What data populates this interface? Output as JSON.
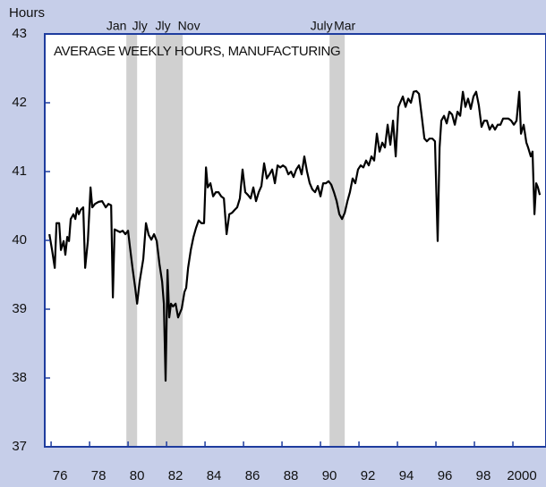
{
  "chart_data": {
    "type": "line",
    "title": "AVERAGE WEEKLY HOURS, MANUFACTURING",
    "y_label": "Hours",
    "xlim": [
      1975.67,
      2001.72
    ],
    "ylim": [
      37,
      43
    ],
    "yticks": [
      37,
      38,
      39,
      40,
      41,
      42,
      43
    ],
    "xticks": [
      {
        "value": 1976,
        "label": "76"
      },
      {
        "value": 1978,
        "label": "78"
      },
      {
        "value": 1980,
        "label": "80"
      },
      {
        "value": 1982,
        "label": "82"
      },
      {
        "value": 1984,
        "label": "84"
      },
      {
        "value": 1986,
        "label": "86"
      },
      {
        "value": 1988,
        "label": "88"
      },
      {
        "value": 1990,
        "label": "90"
      },
      {
        "value": 1992,
        "label": "92"
      },
      {
        "value": 1994,
        "label": "94"
      },
      {
        "value": 1996,
        "label": "96"
      },
      {
        "value": 1998,
        "label": "98"
      },
      {
        "value": 2000,
        "label": "2000"
      }
    ],
    "recessions": [
      {
        "start": 1979.91,
        "end": 1980.47,
        "start_label": "Jan",
        "end_label": "Jly"
      },
      {
        "start": 1981.44,
        "end": 1982.84,
        "start_label": "Jly",
        "end_label": "Nov"
      },
      {
        "start": 1990.47,
        "end": 1991.26,
        "start_label": "July",
        "end_label": "Mar"
      }
    ],
    "recession_color": "#d0d0d0",
    "series": [
      {
        "name": "Average weekly hours",
        "color": "#000000",
        "x": [
          1975.91,
          1976.05,
          1976.19,
          1976.28,
          1976.42,
          1976.51,
          1976.65,
          1976.74,
          1976.84,
          1976.93,
          1977.02,
          1977.16,
          1977.26,
          1977.35,
          1977.44,
          1977.53,
          1977.67,
          1977.77,
          1977.91,
          1978.05,
          1978.14,
          1978.28,
          1978.47,
          1978.65,
          1978.84,
          1978.98,
          1979.12,
          1979.21,
          1979.3,
          1979.44,
          1979.58,
          1979.72,
          1979.86,
          1980.0,
          1980.09,
          1980.23,
          1980.37,
          1980.47,
          1980.6,
          1980.79,
          1980.93,
          1981.07,
          1981.21,
          1981.35,
          1981.49,
          1981.63,
          1981.77,
          1981.86,
          1981.95,
          1982.05,
          1982.14,
          1982.23,
          1982.33,
          1982.47,
          1982.6,
          1982.79,
          1982.93,
          1983.02,
          1983.12,
          1983.26,
          1983.4,
          1983.53,
          1983.67,
          1983.81,
          1983.95,
          1984.05,
          1984.14,
          1984.28,
          1984.42,
          1984.56,
          1984.7,
          1984.84,
          1984.98,
          1985.12,
          1985.26,
          1985.4,
          1985.53,
          1985.67,
          1985.81,
          1985.95,
          1986.09,
          1986.23,
          1986.37,
          1986.51,
          1986.65,
          1986.79,
          1986.93,
          1987.07,
          1987.21,
          1987.35,
          1987.49,
          1987.63,
          1987.77,
          1987.91,
          1988.05,
          1988.19,
          1988.33,
          1988.47,
          1988.6,
          1988.74,
          1988.88,
          1989.02,
          1989.16,
          1989.3,
          1989.44,
          1989.58,
          1989.72,
          1989.86,
          1990.0,
          1990.14,
          1990.28,
          1990.42,
          1990.56,
          1990.7,
          1990.84,
          1990.98,
          1991.12,
          1991.26,
          1991.4,
          1991.53,
          1991.67,
          1991.81,
          1991.95,
          1992.09,
          1992.23,
          1992.37,
          1992.51,
          1992.65,
          1992.79,
          1992.93,
          1993.07,
          1993.21,
          1993.35,
          1993.49,
          1993.63,
          1993.77,
          1993.91,
          1994.05,
          1994.14,
          1994.28,
          1994.42,
          1994.56,
          1994.7,
          1994.84,
          1994.98,
          1995.12,
          1995.26,
          1995.4,
          1995.53,
          1995.67,
          1995.81,
          1995.95,
          1996.09,
          1996.19,
          1996.28,
          1996.42,
          1996.56,
          1996.7,
          1996.84,
          1996.98,
          1997.12,
          1997.26,
          1997.4,
          1997.53,
          1997.67,
          1997.81,
          1997.95,
          1998.09,
          1998.23,
          1998.37,
          1998.51,
          1998.65,
          1998.79,
          1998.93,
          1999.07,
          1999.21,
          1999.35,
          1999.49,
          1999.63,
          1999.77,
          1999.91,
          2000.05,
          2000.19,
          2000.33,
          2000.42,
          2000.56,
          2000.7,
          2000.79,
          2000.93,
          2001.02,
          2001.12,
          2001.21,
          2001.3,
          2001.4
        ],
        "values": [
          40.09,
          39.86,
          39.6,
          40.25,
          40.25,
          39.86,
          39.99,
          39.79,
          40.05,
          39.99,
          40.31,
          40.38,
          40.31,
          40.47,
          40.38,
          40.44,
          40.48,
          39.6,
          39.99,
          40.77,
          40.48,
          40.53,
          40.56,
          40.57,
          40.48,
          40.53,
          40.51,
          39.17,
          40.16,
          40.14,
          40.12,
          40.14,
          40.09,
          40.14,
          39.92,
          39.6,
          39.31,
          39.08,
          39.4,
          39.73,
          40.25,
          40.08,
          40.01,
          40.09,
          39.99,
          39.66,
          39.4,
          39.08,
          37.96,
          39.57,
          38.88,
          39.08,
          39.04,
          39.08,
          38.88,
          39.01,
          39.25,
          39.31,
          39.6,
          39.86,
          40.05,
          40.18,
          40.29,
          40.25,
          40.25,
          41.06,
          40.77,
          40.83,
          40.64,
          40.7,
          40.7,
          40.64,
          40.61,
          40.09,
          40.38,
          40.4,
          40.44,
          40.48,
          40.61,
          41.03,
          40.7,
          40.66,
          40.61,
          40.77,
          40.57,
          40.7,
          40.79,
          41.12,
          40.9,
          40.96,
          41.03,
          40.83,
          41.09,
          41.06,
          41.09,
          41.06,
          40.96,
          41.0,
          40.92,
          41.03,
          41.09,
          40.96,
          41.22,
          41.0,
          40.83,
          40.74,
          40.7,
          40.79,
          40.64,
          40.83,
          40.83,
          40.86,
          40.81,
          40.7,
          40.57,
          40.38,
          40.31,
          40.4,
          40.57,
          40.7,
          40.9,
          40.83,
          41.03,
          41.09,
          41.06,
          41.16,
          41.09,
          41.22,
          41.16,
          41.55,
          41.29,
          41.42,
          41.35,
          41.68,
          41.39,
          41.74,
          41.22,
          41.94,
          42.0,
          42.09,
          41.94,
          42.06,
          42.0,
          42.16,
          42.17,
          42.13,
          41.81,
          41.48,
          41.44,
          41.48,
          41.48,
          41.44,
          39.99,
          41.35,
          41.74,
          41.81,
          41.7,
          41.87,
          41.83,
          41.68,
          41.87,
          41.81,
          42.16,
          41.94,
          42.06,
          41.91,
          42.09,
          42.16,
          41.96,
          41.65,
          41.74,
          41.74,
          41.61,
          41.68,
          41.61,
          41.68,
          41.68,
          41.77,
          41.77,
          41.77,
          41.74,
          41.68,
          41.74,
          42.16,
          41.55,
          41.68,
          41.42,
          41.35,
          41.22,
          41.29,
          40.38,
          40.83,
          40.77,
          40.66
        ]
      }
    ]
  }
}
